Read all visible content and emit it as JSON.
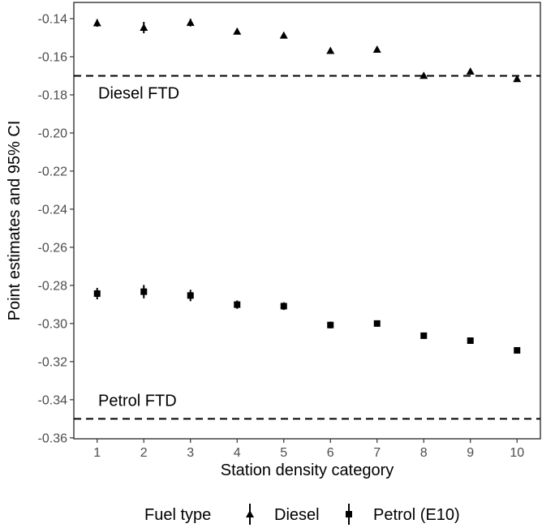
{
  "chart_data": {
    "type": "scatter",
    "xlabel": "Station density category",
    "ylabel": "Point estimates and 95% CI",
    "x": [
      1,
      2,
      3,
      4,
      5,
      6,
      7,
      8,
      9,
      10
    ],
    "xticks": [
      "1",
      "2",
      "3",
      "4",
      "5",
      "6",
      "7",
      "8",
      "9",
      "10"
    ],
    "xlim": [
      0.5,
      10.5
    ],
    "ylim": [
      -0.3605,
      -0.1315
    ],
    "yticks": [
      "-0.14",
      "-0.16",
      "-0.18",
      "-0.20",
      "-0.22",
      "-0.24",
      "-0.26",
      "-0.28",
      "-0.30",
      "-0.32",
      "-0.34",
      "-0.36"
    ],
    "ytick_values": [
      -0.14,
      -0.16,
      -0.18,
      -0.2,
      -0.22,
      -0.24,
      -0.26,
      -0.28,
      -0.3,
      -0.32,
      -0.34,
      -0.36
    ],
    "series": [
      {
        "name": "Diesel",
        "marker": "triangle",
        "values": [
          -0.1423,
          -0.1447,
          -0.1421,
          -0.1467,
          -0.1488,
          -0.1568,
          -0.1562,
          -0.1699,
          -0.1677,
          -0.1716
        ],
        "ci_low": [
          -0.1443,
          -0.1477,
          -0.1441,
          -0.1482,
          -0.15,
          -0.158,
          -0.1572,
          -0.1705,
          -0.1683,
          -0.1722
        ],
        "ci_high": [
          -0.1403,
          -0.1417,
          -0.1401,
          -0.1452,
          -0.1476,
          -0.1556,
          -0.1552,
          -0.1693,
          -0.1671,
          -0.171
        ]
      },
      {
        "name": "Petrol (E10)",
        "marker": "square",
        "values": [
          -0.2843,
          -0.2833,
          -0.2853,
          -0.2901,
          -0.2909,
          -0.3008,
          -0.3,
          -0.3064,
          -0.309,
          -0.3141
        ],
        "ci_low": [
          -0.2873,
          -0.2868,
          -0.2883,
          -0.2923,
          -0.2929,
          -0.3026,
          -0.3014,
          -0.307,
          -0.3096,
          -0.3147
        ],
        "ci_high": [
          -0.2813,
          -0.2798,
          -0.2823,
          -0.2879,
          -0.2889,
          -0.299,
          -0.2986,
          -0.3058,
          -0.3084,
          -0.3135
        ]
      }
    ],
    "reference_lines": [
      {
        "label": "Diesel FTD",
        "y": -0.17,
        "style": "dashed"
      },
      {
        "label": "Petrol FTD",
        "y": -0.35,
        "style": "dashed"
      }
    ],
    "legend": {
      "title": "Fuel type",
      "position": "bottom",
      "entries": [
        "Diesel",
        "Petrol (E10)"
      ]
    },
    "grid": false
  }
}
